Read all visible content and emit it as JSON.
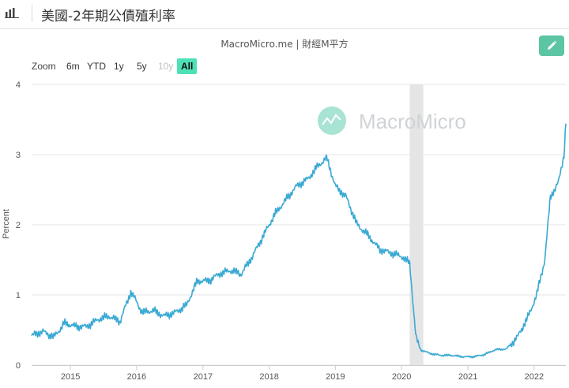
{
  "header": {
    "title": "美國-2年期公債殖利率"
  },
  "source": "MacroMicro.me | 財經M平方",
  "watermark": "MacroMicro",
  "range_selector": {
    "zoom_label": "Zoom",
    "buttons": [
      "6m",
      "YTD",
      "1y",
      "5y",
      "10y",
      "All"
    ],
    "disabled": "10y",
    "selected": "All"
  },
  "colors": {
    "line": "#3aa9d3",
    "accent": "#4ee0b6",
    "edit_button": "#5cc5a4",
    "recession": "#e5e5e5"
  },
  "chart_data": {
    "type": "line",
    "title": "",
    "xlabel": "",
    "ylabel": "Percent",
    "ylim": [
      0,
      4
    ],
    "yticks": [
      "0",
      "1",
      "2",
      "3",
      "4"
    ],
    "xticks": [
      "2015",
      "2016",
      "2017",
      "2018",
      "2019",
      "2020",
      "2021",
      "2022"
    ],
    "grid": true,
    "recession_band": {
      "start": "2020-02-15",
      "end": "2020-04-30"
    },
    "series": [
      {
        "x": [
          "2014-06-01",
          "2014-08-01",
          "2014-10-01",
          "2014-12-01",
          "2015-02-01",
          "2015-04-01",
          "2015-06-01",
          "2015-08-01",
          "2015-10-01",
          "2015-12-01",
          "2016-02-01",
          "2016-04-01",
          "2016-06-01",
          "2016-08-01",
          "2016-10-01",
          "2016-12-01",
          "2017-02-01",
          "2017-04-01",
          "2017-06-01",
          "2017-08-01",
          "2017-10-01",
          "2017-12-01",
          "2018-02-01",
          "2018-04-01",
          "2018-06-01",
          "2018-08-01",
          "2018-10-01",
          "2018-11-15",
          "2019-01-01",
          "2019-03-01",
          "2019-05-01",
          "2019-07-01",
          "2019-09-01",
          "2019-11-01",
          "2020-01-01",
          "2020-02-15",
          "2020-03-20",
          "2020-04-15",
          "2020-06-01",
          "2020-08-01",
          "2020-10-01",
          "2020-12-01",
          "2021-02-01",
          "2021-04-01",
          "2021-06-01",
          "2021-08-01",
          "2021-10-01",
          "2021-12-01",
          "2022-01-15",
          "2022-03-01",
          "2022-04-01",
          "2022-05-15",
          "2022-06-15",
          "2022-06-25"
        ],
        "y": [
          0.42,
          0.48,
          0.4,
          0.6,
          0.55,
          0.55,
          0.65,
          0.7,
          0.62,
          1.05,
          0.75,
          0.78,
          0.7,
          0.75,
          0.85,
          1.2,
          1.2,
          1.3,
          1.35,
          1.3,
          1.55,
          1.85,
          2.15,
          2.35,
          2.55,
          2.65,
          2.85,
          2.95,
          2.55,
          2.4,
          2.0,
          1.85,
          1.65,
          1.6,
          1.55,
          1.45,
          0.4,
          0.22,
          0.17,
          0.14,
          0.14,
          0.12,
          0.12,
          0.15,
          0.22,
          0.23,
          0.4,
          0.7,
          1.0,
          1.5,
          2.4,
          2.6,
          3.0,
          3.45
        ]
      }
    ]
  }
}
